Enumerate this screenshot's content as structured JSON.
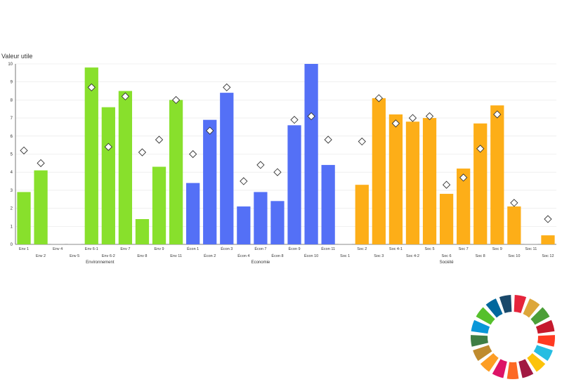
{
  "chart_data": {
    "type": "bar",
    "ylabel": "Valeur utile",
    "ylim": [
      0,
      10
    ],
    "yticks": [
      0,
      1,
      2,
      3,
      4,
      5,
      6,
      7,
      8,
      9,
      10
    ],
    "grid": true,
    "categories": [
      "Env 1",
      "Env 2",
      "Env 4",
      "Env 5",
      "Env 6-1",
      "Env 6-2",
      "Env 7",
      "Env 8",
      "Env 9",
      "Env 11",
      "Écon 1",
      "Écon 2",
      "Écon 3",
      "Écon 4",
      "Écon 7",
      "Écon 8",
      "Écon 9",
      "Écon 10",
      "Écon 11",
      "Soc 1",
      "Soc 2",
      "Soc 3",
      "Soc 4-1",
      "Soc 4-2",
      "Soc 5",
      "Soc 6",
      "Soc 7",
      "Soc 8",
      "Soc 9",
      "Soc 10",
      "Soc 11",
      "Soc 12"
    ],
    "groups": [
      {
        "name": "Environnement",
        "color": "#88e02c",
        "categories": [
          "Env 1",
          "Env 2",
          "Env 4",
          "Env 5",
          "Env 6-1",
          "Env 6-2",
          "Env 7",
          "Env 8",
          "Env 9",
          "Env 11"
        ]
      },
      {
        "name": "Economie",
        "color": "#5470f6",
        "categories": [
          "Écon 1",
          "Écon 2",
          "Écon 3",
          "Écon 4",
          "Écon 7",
          "Écon 8",
          "Écon 9",
          "Écon 10",
          "Écon 11"
        ]
      },
      {
        "name": "Société",
        "color": "#fdae18",
        "categories": [
          "Soc 1",
          "Soc 2",
          "Soc 3",
          "Soc 4-1",
          "Soc 4-2",
          "Soc 5",
          "Soc 6",
          "Soc 7",
          "Soc 8",
          "Soc 9",
          "Soc 10",
          "Soc 11",
          "Soc 12"
        ]
      }
    ],
    "series": [
      {
        "kind": "bar",
        "values": [
          2.9,
          4.1,
          0.0,
          0.0,
          9.8,
          7.6,
          8.5,
          1.4,
          4.3,
          8.0,
          3.4,
          6.9,
          8.4,
          2.1,
          2.9,
          2.4,
          6.6,
          10.0,
          4.4,
          0.0,
          3.3,
          8.1,
          7.2,
          6.8,
          7.0,
          2.8,
          4.2,
          6.7,
          7.7,
          2.1,
          0.0,
          0.5
        ]
      },
      {
        "kind": "marker",
        "marker": "diamond",
        "values": [
          5.2,
          4.5,
          null,
          null,
          8.7,
          5.4,
          8.2,
          5.1,
          5.8,
          8.0,
          5.0,
          6.3,
          8.7,
          3.5,
          4.4,
          4.0,
          6.9,
          7.1,
          5.8,
          null,
          5.7,
          8.1,
          6.7,
          7.0,
          7.1,
          3.3,
          3.7,
          5.3,
          7.2,
          2.3,
          null,
          1.4
        ]
      }
    ]
  },
  "logo": {
    "name": "sdg-wheel-logo",
    "colors": [
      "#e5243b",
      "#dda63a",
      "#4c9f38",
      "#c5192d",
      "#ff3a21",
      "#26bde2",
      "#fcc30b",
      "#a21942",
      "#fd6925",
      "#dd1367",
      "#fd9d24",
      "#bf8b2e",
      "#3f7e44",
      "#0a97d9",
      "#56c02b",
      "#00689d",
      "#19486a"
    ]
  }
}
